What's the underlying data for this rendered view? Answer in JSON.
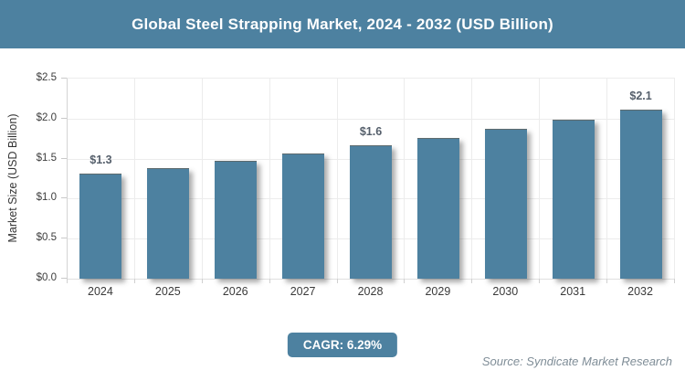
{
  "header": {
    "title": "Global Steel Strapping Market, 2024 - 2032 (USD Billion)"
  },
  "chart_data": {
    "type": "bar",
    "title": "Global Steel Strapping Market, 2024 - 2032 (USD Billion)",
    "categories": [
      "2024",
      "2025",
      "2026",
      "2027",
      "2028",
      "2029",
      "2030",
      "2031",
      "2032"
    ],
    "values": [
      1.3,
      1.37,
      1.46,
      1.55,
      1.65,
      1.75,
      1.86,
      1.98,
      2.1
    ],
    "bar_labels": [
      "$1.3",
      "",
      "",
      "",
      "$1.6",
      "",
      "",
      "",
      "$2.1"
    ],
    "xlabel": "",
    "ylabel": "Market Size (USD Billion)",
    "ytick_labels": [
      "$0.0",
      "$0.5",
      "$1.0",
      "$1.5",
      "$2.0",
      "$2.5"
    ],
    "ylim": [
      0,
      2.5
    ],
    "ytick_step": 0.5,
    "grid": true,
    "legend": false,
    "bar_color": "#4d81a0"
  },
  "footer": {
    "cagr_label": "CAGR: 6.29%",
    "source": "Source: Syndicate Market Research"
  },
  "colors": {
    "accent_teal": "#4d81a0",
    "value_label_text": "#555f6b",
    "source_text": "#7f8d97",
    "grid_line": "#ececec"
  }
}
